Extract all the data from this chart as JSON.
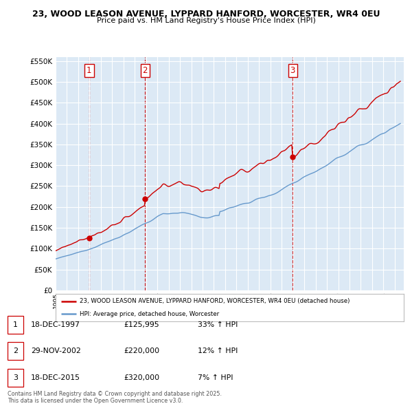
{
  "title1": "23, WOOD LEASON AVENUE, LYPPARD HANFORD, WORCESTER, WR4 0EU",
  "title2": "Price paid vs. HM Land Registry's House Price Index (HPI)",
  "red_label": "23, WOOD LEASON AVENUE, LYPPARD HANFORD, WORCESTER, WR4 0EU (detached house)",
  "blue_label": "HPI: Average price, detached house, Worcester",
  "purchases": [
    {
      "num": 1,
      "date": "18-DEC-1997",
      "price": 125995,
      "year": 1997.97,
      "pct": "33%"
    },
    {
      "num": 2,
      "date": "29-NOV-2002",
      "price": 220000,
      "year": 2002.91,
      "pct": "12%"
    },
    {
      "num": 3,
      "date": "18-DEC-2015",
      "price": 320000,
      "year": 2015.97,
      "pct": "7%"
    }
  ],
  "footer": "Contains HM Land Registry data © Crown copyright and database right 2025.\nThis data is licensed under the Open Government Licence v3.0.",
  "ylim": [
    0,
    560000
  ],
  "yticks": [
    0,
    50000,
    100000,
    150000,
    200000,
    250000,
    300000,
    350000,
    400000,
    450000,
    500000,
    550000
  ],
  "red_color": "#cc0000",
  "blue_color": "#6699cc",
  "vline_color": "#cc0000",
  "bg_color": "#ffffff",
  "plot_bg": "#dce9f5",
  "grid_color": "#ffffff",
  "shade_color": "#c8ddf0"
}
